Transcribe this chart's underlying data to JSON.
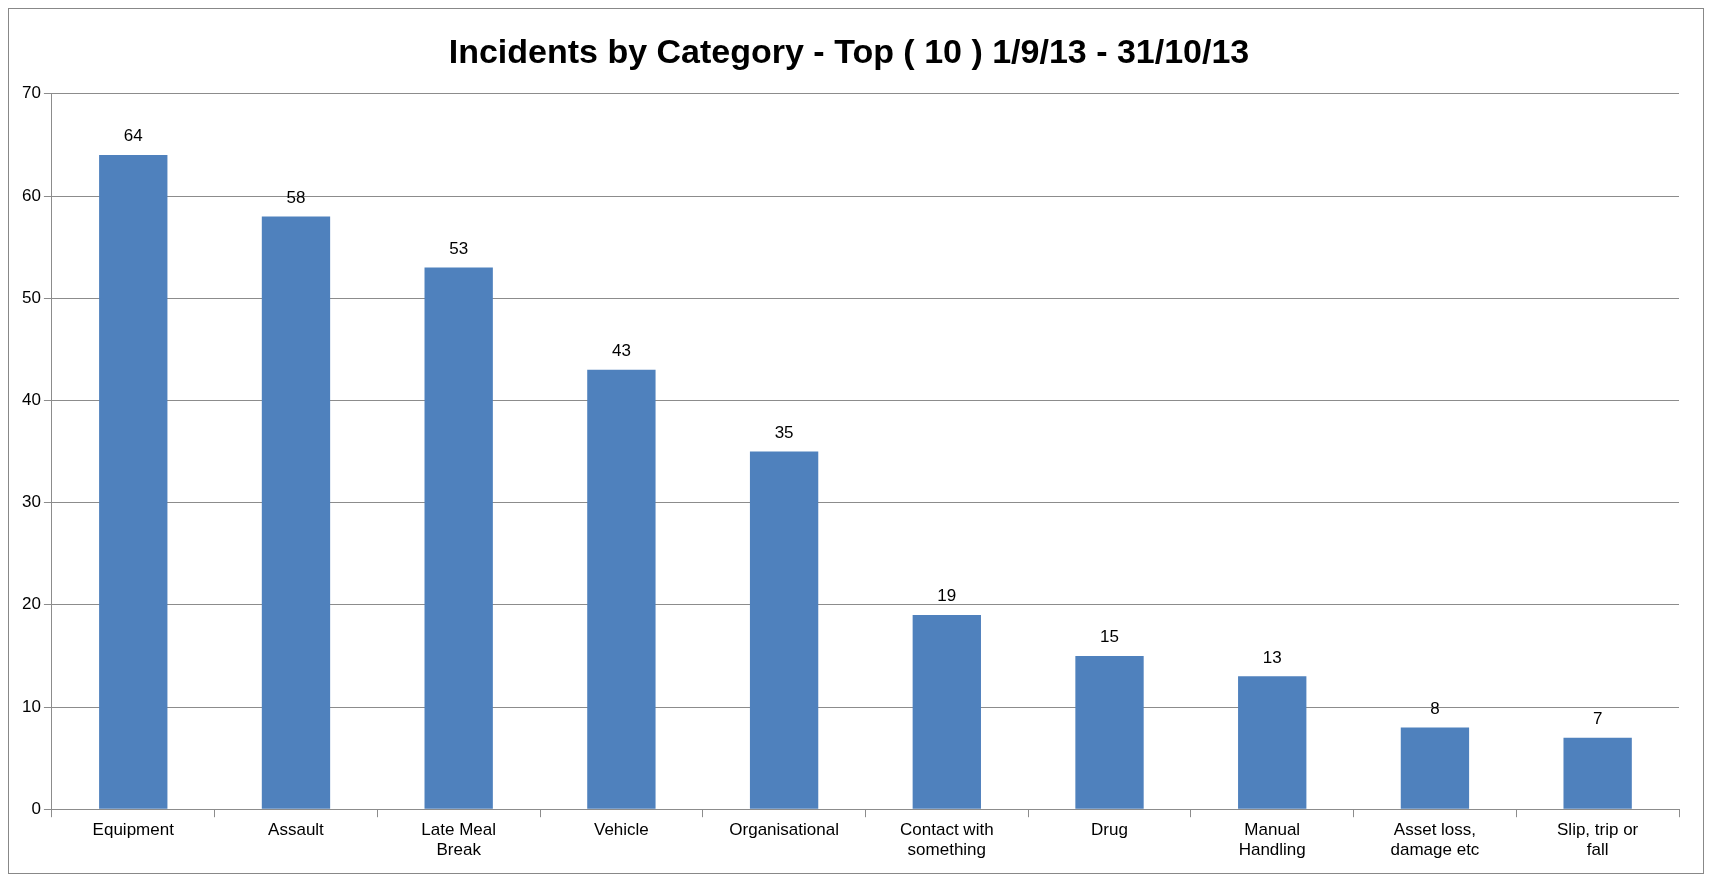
{
  "chart_data": {
    "type": "bar",
    "title": "Incidents by Category - Top ( 10 ) 1/9/13 - 31/10/13",
    "categories": [
      "Equipment",
      "Assault",
      "Late Meal Break",
      "Vehicle",
      "Organisational",
      "Contact with something",
      "Drug",
      "Manual Handling",
      "Asset loss, damage etc",
      "Slip, trip or fall"
    ],
    "values": [
      64,
      58,
      53,
      43,
      35,
      19,
      15,
      13,
      8,
      7
    ],
    "color": "#4f81bd",
    "ylim": [
      0,
      70
    ],
    "yticks": [
      0,
      10,
      20,
      30,
      40,
      50,
      60,
      70
    ],
    "grid": "y",
    "data_labels": true,
    "legend": false
  }
}
